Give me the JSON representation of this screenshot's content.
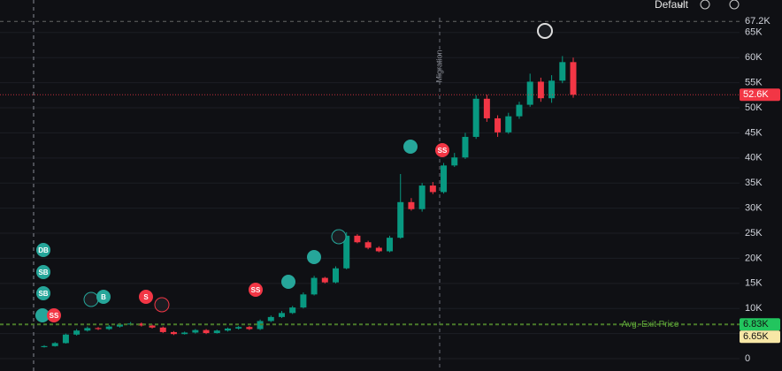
{
  "toolbar": {
    "layout": "Default"
  },
  "chart_data": {
    "type": "candlestick",
    "up_color": "#089981",
    "down_color": "#f23645",
    "open": [
      2300,
      2500,
      3100,
      4800,
      5600,
      6100,
      5900,
      6400,
      6800,
      7000,
      6600,
      6200,
      5300,
      4900,
      5200,
      5700,
      5100,
      5600,
      6000,
      6300,
      5900,
      7500,
      8300,
      9100,
      10200,
      12800,
      16100,
      15200,
      18000,
      24500,
      23200,
      22100,
      21400,
      24100,
      31200,
      29800,
      34500,
      33200,
      38500,
      40100,
      44200,
      51800,
      47900,
      45100,
      48300,
      50600,
      55200,
      51900,
      55400,
      59100
    ],
    "high": [
      2700,
      3300,
      5000,
      5900,
      6400,
      6300,
      6700,
      7100,
      7300,
      7200,
      6800,
      6400,
      5500,
      5400,
      5900,
      5900,
      5800,
      6200,
      6500,
      6500,
      7800,
      8600,
      9500,
      10500,
      13200,
      16500,
      16300,
      18400,
      25200,
      24800,
      23500,
      22400,
      24500,
      36800,
      32000,
      35000,
      35200,
      39000,
      41000,
      45000,
      52500,
      52600,
      48500,
      49000,
      51200,
      56800,
      56000,
      56500,
      60300,
      60000
    ],
    "low": [
      2200,
      2400,
      3000,
      4600,
      5400,
      5700,
      5700,
      6200,
      6600,
      6400,
      6000,
      5100,
      4700,
      4800,
      5000,
      4900,
      5000,
      5400,
      5800,
      5700,
      5700,
      7300,
      8100,
      8900,
      10000,
      12600,
      15000,
      15000,
      17800,
      23000,
      21800,
      21200,
      21200,
      23900,
      29500,
      29300,
      32800,
      32900,
      38200,
      39800,
      43800,
      47200,
      44200,
      44800,
      47800,
      50200,
      51200,
      51000,
      54900,
      52000
    ],
    "close": [
      2500,
      3100,
      4800,
      5600,
      6100,
      5900,
      6400,
      6800,
      7000,
      6600,
      6200,
      5300,
      4900,
      5200,
      5700,
      5100,
      5600,
      6000,
      6300,
      5900,
      7500,
      8300,
      9100,
      10200,
      12800,
      16100,
      15200,
      18000,
      24500,
      23200,
      22100,
      21400,
      24100,
      31200,
      29800,
      34500,
      33200,
      38500,
      40100,
      44200,
      51800,
      47900,
      45100,
      48300,
      50600,
      55200,
      51900,
      55400,
      59100,
      52600
    ],
    "ylim": [
      -2460,
      71480
    ],
    "yticks": [
      {
        "value": 0,
        "label": "0"
      },
      {
        "value": 5000,
        "label": "5K"
      },
      {
        "value": 10000,
        "label": "10K"
      },
      {
        "value": 15000,
        "label": "15K"
      },
      {
        "value": 20000,
        "label": "20K"
      },
      {
        "value": 25000,
        "label": "25K"
      },
      {
        "value": 30000,
        "label": "30K"
      },
      {
        "value": 35000,
        "label": "35K"
      },
      {
        "value": 40000,
        "label": "40K"
      },
      {
        "value": 45000,
        "label": "45K"
      },
      {
        "value": 50000,
        "label": "50K"
      },
      {
        "value": 55000,
        "label": "55K"
      },
      {
        "value": 60000,
        "label": "60K"
      },
      {
        "value": 65000,
        "label": "65K"
      },
      {
        "value": 67200,
        "label": "67.2K"
      }
    ],
    "grid": true,
    "price_lines": [
      {
        "value": 52600,
        "label": "52.6K",
        "color": "#f23645"
      },
      {
        "value": 6830,
        "label": "6.83K",
        "color": "#22c55e"
      },
      {
        "value": 6650,
        "label": "6.65K",
        "color": "#f7e7a6"
      }
    ],
    "avg_exit_label": "Avg. Exit Price",
    "migration_label": "Migration",
    "annotations": [
      "DB",
      "SB",
      "SB",
      "SS",
      "B",
      "S",
      "SS",
      "SS"
    ]
  }
}
